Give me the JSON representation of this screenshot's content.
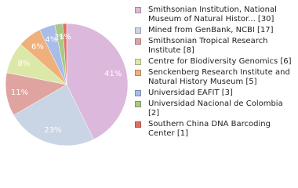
{
  "chart_data": {
    "type": "pie",
    "series": [
      {
        "name": "Smithsonian Institution, National Museum of Natural Histor... [30]",
        "color": "#dcb8dc"
      },
      {
        "name": "Mined from GenBank, NCBI [17]",
        "color": "#c9d4e4"
      },
      {
        "name": "Smithsonian Tropical Research Institute [8]",
        "color": "#e0a4a0"
      },
      {
        "name": "Centre for Biodiversity Genomics [6]",
        "color": "#dce8a8"
      },
      {
        "name": "Senckenberg Research Institute and Natural History Museum [5]",
        "color": "#f0b07c"
      },
      {
        "name": "Universidad EAFIT [3]",
        "color": "#a8bce8"
      },
      {
        "name": "Universidad Nacional de Colombia [2]",
        "color": "#a8c888"
      },
      {
        "name": "Southern China DNA Barcoding Center [1]",
        "color": "#e07060"
      }
    ],
    "values": [
      41,
      23,
      11,
      8,
      6,
      4,
      2,
      1
    ],
    "value_labels": [
      "41%",
      "23%",
      "11%",
      "8%",
      "6%",
      "4%",
      "2%",
      "1%"
    ]
  }
}
